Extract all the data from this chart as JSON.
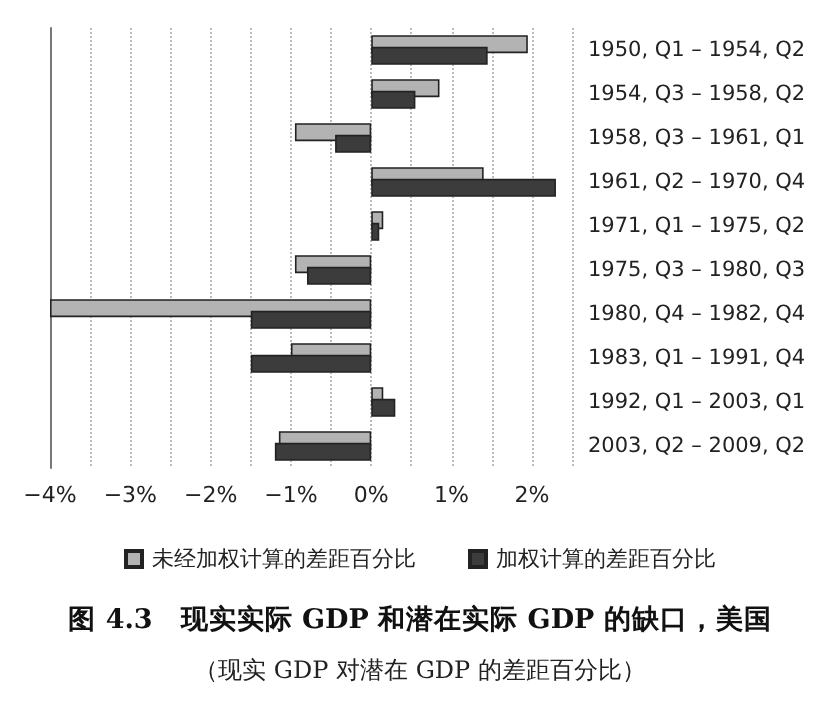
{
  "chart_data": {
    "type": "bar",
    "orientation": "horizontal",
    "title": "图 4.3　现实实际 GDP 和潜在实际 GDP 的缺口，美国",
    "subtitle": "（现实 GDP 对潜在 GDP 的差距百分比）",
    "categories": [
      "1950, Q1 – 1954, Q2",
      "1954, Q3 – 1958, Q2",
      "1958, Q3 – 1961, Q1",
      "1961, Q2 – 1970, Q4",
      "1971, Q1 – 1975, Q2",
      "1975, Q3 – 1980, Q3",
      "1980, Q4 – 1982, Q4",
      "1983, Q1 – 1991, Q4",
      "1992, Q1 – 2003, Q1",
      "2003, Q2 – 2009, Q2"
    ],
    "series": [
      {
        "name": "未经加权计算的差距百分比",
        "color": "#b3b3b3",
        "values": [
          1.95,
          0.85,
          -0.95,
          1.4,
          0.15,
          -0.95,
          -4.0,
          -1.0,
          0.15,
          -1.15
        ]
      },
      {
        "name": "加权计算的差距百分比",
        "color": "#3c3c3c",
        "values": [
          1.45,
          0.55,
          -0.45,
          2.3,
          0.1,
          -0.8,
          -1.5,
          -1.5,
          0.3,
          -1.2
        ]
      }
    ],
    "xlim": [
      -4,
      2.5
    ],
    "xticks": [
      {
        "value": -4,
        "label": "−4%"
      },
      {
        "value": -3.5,
        "label": null
      },
      {
        "value": -3,
        "label": "−3%"
      },
      {
        "value": -2.5,
        "label": null
      },
      {
        "value": -2,
        "label": "−2%"
      },
      {
        "value": -1.5,
        "label": null
      },
      {
        "value": -1,
        "label": "−1%"
      },
      {
        "value": -0.5,
        "label": null
      },
      {
        "value": 0,
        "label": "0%"
      },
      {
        "value": 0.5,
        "label": null
      },
      {
        "value": 1,
        "label": "1%"
      },
      {
        "value": 1.5,
        "label": null
      },
      {
        "value": 2,
        "label": "2%"
      },
      {
        "value": 2.5,
        "label": null
      }
    ],
    "grid": "x",
    "legend": "bottom"
  }
}
